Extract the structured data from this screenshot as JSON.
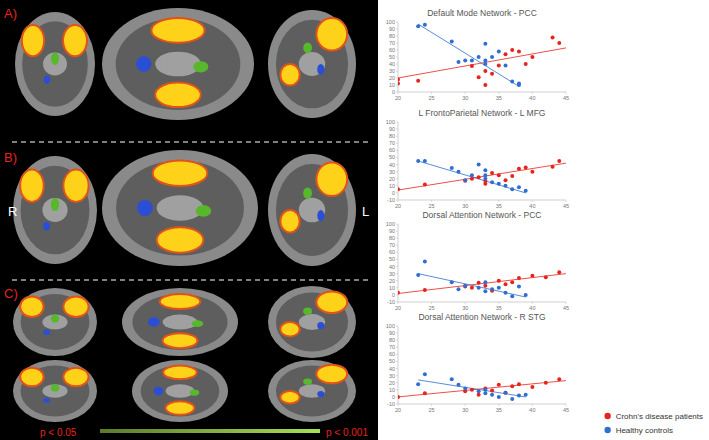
{
  "chart_data": [
    {
      "type": "scatter",
      "title": "Default Mode Network - PCC",
      "xlim": [
        20,
        45
      ],
      "xticks": [
        20,
        25,
        30,
        35,
        40,
        45
      ],
      "ylim": [
        0,
        100
      ],
      "yticks": [
        0,
        10,
        20,
        30,
        40,
        50,
        60,
        70,
        80,
        90,
        100
      ],
      "grid": false,
      "series": [
        {
          "color": "#e8231c",
          "marker": "circle",
          "x": [
            20,
            20,
            23,
            31,
            32,
            33,
            33,
            34,
            35,
            36,
            37,
            38,
            39,
            40,
            43,
            44
          ],
          "values": [
            18,
            12,
            16,
            37,
            21,
            30,
            10,
            26,
            38,
            54,
            60,
            58,
            40,
            50,
            78,
            70
          ],
          "trend": {
            "x": [
              20,
              45
            ],
            "values": [
              20,
              63
            ]
          }
        },
        {
          "color": "#2f6fd0",
          "marker": "circle",
          "x": [
            23,
            24,
            28,
            29,
            30,
            31,
            32,
            33,
            33,
            33,
            34,
            35,
            36,
            37,
            38,
            38
          ],
          "values": [
            94,
            96,
            72,
            43,
            45,
            45,
            50,
            45,
            69,
            40,
            50,
            58,
            38,
            15,
            10,
            12
          ],
          "trend": {
            "x": [
              23,
              38
            ],
            "values": [
              97,
              8
            ]
          }
        }
      ]
    },
    {
      "type": "scatter",
      "title": "L FrontoParietal Network - L MFG",
      "xlim": [
        20,
        45
      ],
      "xticks": [
        20,
        25,
        30,
        35,
        40,
        45
      ],
      "ylim": [
        -10,
        100
      ],
      "yticks": [
        -10,
        0,
        10,
        20,
        30,
        40,
        50,
        60,
        70,
        80,
        90,
        100
      ],
      "grid": false,
      "series": [
        {
          "color": "#e8231c",
          "marker": "circle",
          "x": [
            20,
            24,
            30,
            31,
            32,
            33,
            33,
            34,
            35,
            36,
            37,
            38,
            39,
            40,
            43,
            44
          ],
          "values": [
            5,
            12,
            17,
            20,
            22,
            17,
            13,
            28,
            25,
            18,
            24,
            34,
            36,
            30,
            37,
            45
          ],
          "trend": {
            "x": [
              20,
              45
            ],
            "values": [
              4,
              42
            ]
          }
        },
        {
          "color": "#2f6fd0",
          "marker": "circle",
          "x": [
            23,
            24,
            28,
            29,
            30,
            31,
            32,
            33,
            33,
            33,
            34,
            35,
            36,
            37,
            38,
            39
          ],
          "values": [
            45,
            45,
            35,
            30,
            18,
            25,
            40,
            25,
            20,
            32,
            15,
            13,
            10,
            5,
            8,
            3
          ],
          "trend": {
            "x": [
              23,
              39
            ],
            "values": [
              45,
              0
            ]
          }
        }
      ]
    },
    {
      "type": "scatter",
      "title": "Dorsal Attention Network - PCC",
      "xlim": [
        20,
        45
      ],
      "xticks": [
        20,
        25,
        30,
        35,
        40,
        45
      ],
      "ylim": [
        -10,
        100
      ],
      "yticks": [
        -10,
        0,
        10,
        20,
        30,
        40,
        50,
        60,
        70,
        80,
        90,
        100
      ],
      "grid": false,
      "series": [
        {
          "color": "#e8231c",
          "marker": "circle",
          "x": [
            20,
            24,
            30,
            31,
            32,
            33,
            34,
            35,
            36,
            37,
            38,
            40,
            42,
            44
          ],
          "values": [
            3,
            7,
            12,
            10,
            17,
            13,
            6,
            20,
            15,
            18,
            24,
            27,
            25,
            32
          ],
          "trend": {
            "x": [
              20,
              45
            ],
            "values": [
              2,
              30
            ]
          }
        },
        {
          "color": "#2f6fd0",
          "marker": "circle",
          "x": [
            23,
            24,
            28,
            29,
            30,
            32,
            33,
            33,
            34,
            35,
            36,
            37,
            38,
            39
          ],
          "values": [
            28,
            47,
            18,
            8,
            13,
            10,
            18,
            5,
            8,
            10,
            3,
            -2,
            12,
            0
          ],
          "trend": {
            "x": [
              23,
              39
            ],
            "values": [
              30,
              -3
            ]
          }
        }
      ]
    },
    {
      "type": "scatter",
      "title": "Dorsal Attention Network - R STG",
      "xlim": [
        20,
        45
      ],
      "xticks": [
        20,
        25,
        30,
        35,
        40,
        45
      ],
      "ylim": [
        -10,
        100
      ],
      "yticks": [
        -10,
        0,
        10,
        20,
        30,
        40,
        50,
        60,
        70,
        80,
        90,
        100
      ],
      "grid": false,
      "legend": "lower right",
      "series": [
        {
          "name": "Crohn's disease patients",
          "color": "#e8231c",
          "marker": "circle",
          "x": [
            20,
            24,
            30,
            31,
            32,
            33,
            34,
            35,
            36,
            37,
            38,
            40,
            42,
            44
          ],
          "values": [
            0,
            5,
            8,
            10,
            3,
            12,
            9,
            17,
            6,
            15,
            18,
            14,
            20,
            25
          ],
          "trend": {
            "x": [
              20,
              45
            ],
            "values": [
              0,
              23
            ]
          }
        },
        {
          "name": "Healthy controls",
          "color": "#2f6fd0",
          "marker": "circle",
          "x": [
            23,
            24,
            28,
            29,
            30,
            32,
            33,
            33,
            34,
            35,
            36,
            37,
            38,
            39
          ],
          "values": [
            18,
            32,
            25,
            17,
            12,
            8,
            5,
            10,
            3,
            0,
            6,
            -3,
            2,
            3
          ],
          "trend": {
            "x": [
              23,
              39
            ],
            "values": [
              24,
              0
            ]
          }
        }
      ]
    }
  ],
  "panel": {
    "labels": [
      "A)",
      "B)",
      "C)"
    ],
    "left_side": "R",
    "right_side": "L",
    "scale": {
      "low": "p < 0.05",
      "high": "p < 0.001"
    }
  }
}
